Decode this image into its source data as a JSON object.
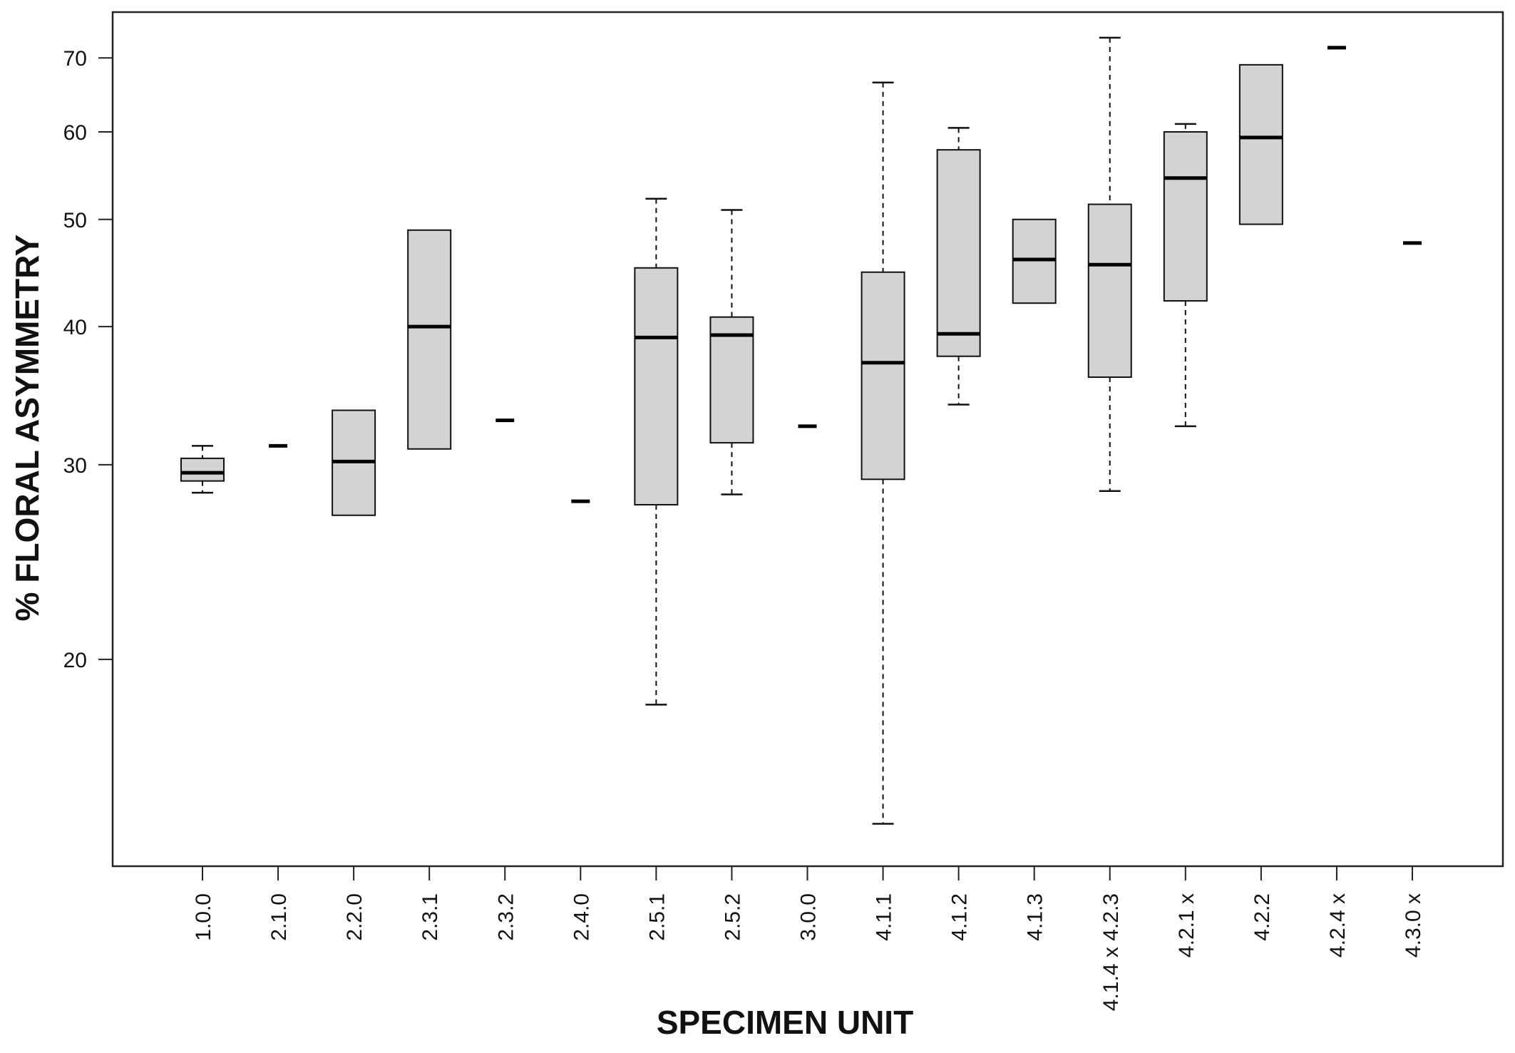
{
  "chart_data": {
    "type": "boxplot",
    "ylabel": "% FLORAL ASYMMETRY",
    "xlabel": "SPECIMEN UNIT",
    "y_scale": "log",
    "y_ticks": [
      20,
      30,
      40,
      50,
      60,
      70
    ],
    "ylim": [
      13,
      77
    ],
    "grid": false,
    "legend": "none",
    "box_color": "#d3d3d3",
    "categories": [
      "1.0.0",
      "2.1.0",
      "2.2.0",
      "2.3.1",
      "2.3.2",
      "2.4.0",
      "2.5.1",
      "2.5.2",
      "3.0.0",
      "4.1.1",
      "4.1.2",
      "4.1.3",
      "4.1.4 x 4.2.3",
      "4.2.1 x",
      "4.2.2",
      "4.2.4 x",
      "4.3.0 x"
    ],
    "boxes": [
      {
        "category": "1.0.0",
        "whisker_low": 28.3,
        "q1": 29.0,
        "median": 29.5,
        "q3": 30.4,
        "whisker_high": 31.2
      },
      {
        "category": "2.1.0",
        "single_value": 31.2
      },
      {
        "category": "2.2.0",
        "whisker_low": 27.0,
        "q1": 27.0,
        "median": 30.2,
        "q3": 33.6,
        "whisker_high": 33.6
      },
      {
        "category": "2.3.1",
        "whisker_low": 31.0,
        "q1": 31.0,
        "median": 40.0,
        "q3": 48.9,
        "whisker_high": 48.9
      },
      {
        "category": "2.3.2",
        "single_value": 32.9
      },
      {
        "category": "2.4.0",
        "single_value": 27.8
      },
      {
        "category": "2.5.1",
        "whisker_low": 18.2,
        "q1": 27.6,
        "median": 39.1,
        "q3": 45.2,
        "whisker_high": 52.2
      },
      {
        "category": "2.5.2",
        "whisker_low": 28.2,
        "q1": 31.4,
        "median": 39.3,
        "q3": 40.8,
        "whisker_high": 51.0
      },
      {
        "category": "3.0.0",
        "single_value": 32.5
      },
      {
        "category": "4.1.1",
        "whisker_low": 14.2,
        "q1": 29.1,
        "median": 37.1,
        "q3": 44.8,
        "whisker_high": 66.5
      },
      {
        "category": "4.1.2",
        "whisker_low": 34.0,
        "q1": 37.6,
        "median": 39.4,
        "q3": 57.8,
        "whisker_high": 60.5
      },
      {
        "category": "4.1.3",
        "whisker_low": 42.0,
        "q1": 42.0,
        "median": 46.0,
        "q3": 50.0,
        "whisker_high": 50.0
      },
      {
        "category": "4.1.4 x 4.2.3",
        "whisker_low": 28.4,
        "q1": 36.0,
        "median": 45.5,
        "q3": 51.6,
        "whisker_high": 73.0
      },
      {
        "category": "4.2.1 x",
        "whisker_low": 32.5,
        "q1": 42.2,
        "median": 54.5,
        "q3": 60.0,
        "whisker_high": 61.0
      },
      {
        "category": "4.2.2",
        "whisker_low": 49.5,
        "q1": 49.5,
        "median": 59.3,
        "q3": 69.0,
        "whisker_high": 69.0
      },
      {
        "category": "4.2.4 x",
        "single_value": 71.5
      },
      {
        "category": "4.3.0 x",
        "single_value": 47.6
      }
    ]
  }
}
